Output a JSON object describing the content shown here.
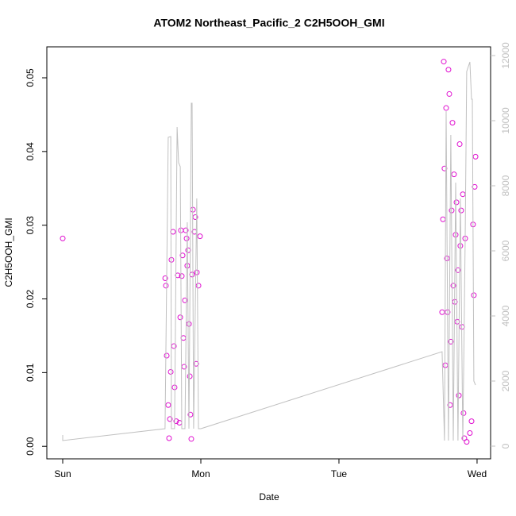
{
  "chart_data": {
    "type": "scatter",
    "title": "ATOM2 Northeast_Pacific_2 C2H5OOH_GMI",
    "x_label": "Date",
    "y_label": "C2H5OOH_GMI",
    "xlim": [
      -0.115,
      3.098
    ],
    "xticks": [
      {
        "value": 0,
        "label": "Sun"
      },
      {
        "value": 1,
        "label": "Mon"
      },
      {
        "value": 2,
        "label": "Tue"
      },
      {
        "value": 3,
        "label": "Wed"
      }
    ],
    "ylim": [
      -0.0017,
      0.0542
    ],
    "yticks": [
      {
        "value": 0,
        "label": "0.00"
      },
      0.01,
      0.02,
      0.03,
      0.04,
      0.05
    ],
    "y2lim": [
      -390,
      12268
    ],
    "y2ticks": [
      0,
      2000,
      4000,
      6000,
      8000,
      10000,
      12000
    ],
    "y2_color": "#c0c0c0",
    "series": [
      {
        "color": "#e010d0",
        "x": [
          0,
          0.742,
          0.747,
          0.753,
          0.764,
          0.77,
          0.776,
          0.782,
          0.787,
          0.799,
          0.805,
          0.81,
          0.822,
          0.833,
          0.845,
          0.851,
          0.856,
          0.862,
          0.868,
          0.874,
          0.879,
          0.885,
          0.891,
          0.897,
          0.902,
          0.908,
          0.914,
          0.92,
          0.925,
          0.931,
          0.937,
          0.943,
          0.954,
          0.96,
          0.966,
          0.971,
          0.983,
          0.994,
          2.747,
          2.753,
          2.759,
          2.764,
          2.77,
          2.776,
          2.782,
          2.787,
          2.793,
          2.799,
          2.805,
          2.81,
          2.816,
          2.822,
          2.828,
          2.833,
          2.839,
          2.845,
          2.851,
          2.856,
          2.862,
          2.868,
          2.874,
          2.879,
          2.885,
          2.891,
          2.897,
          2.902,
          2.908,
          2.914,
          2.925,
          2.948,
          2.96,
          2.971,
          2.977,
          2.983,
          2.989
        ],
        "values": [
          0.0282,
          0.0228,
          0.0218,
          0.0123,
          0.0056,
          0.0011,
          0.0037,
          0.0101,
          0.0253,
          0.0291,
          0.0136,
          0.008,
          0.0034,
          0.0232,
          0.0032,
          0.0175,
          0.0293,
          0.0231,
          0.0259,
          0.0147,
          0.0108,
          0.0198,
          0.0293,
          0.0282,
          0.0245,
          0.0266,
          0.0166,
          0.0095,
          0.0043,
          0.001,
          0.0233,
          0.0321,
          0.0291,
          0.0311,
          0.0112,
          0.0236,
          0.0218,
          0.0285,
          0.0182,
          0.0308,
          0.0522,
          0.0377,
          0.011,
          0.0459,
          0.0255,
          0.0182,
          0.0511,
          0.0478,
          0.0056,
          0.0142,
          0.032,
          0.0439,
          0.0218,
          0.0369,
          0.0196,
          0.0287,
          0.0331,
          0.0169,
          0.0239,
          0.0069,
          0.041,
          0.0272,
          0.032,
          0.0162,
          0.0342,
          0.0045,
          0.0011,
          0.0282,
          0.0006,
          0.0018,
          0.0034,
          0.0301,
          0.0205,
          0.0352,
          0.0393
        ]
      },
      {
        "color": "#c0c0c0",
        "axis": "y2",
        "line": true,
        "x": [
          0,
          0,
          0.741,
          0.764,
          0.782,
          0.787,
          0.81,
          0.828,
          0.839,
          0.851,
          0.862,
          0.885,
          0.902,
          0.914,
          0.931,
          0.937,
          0.948,
          0.971,
          0.983,
          1.0,
          2.747,
          2.764,
          2.776,
          2.793,
          2.81,
          2.828,
          2.845,
          2.862,
          2.879,
          2.897,
          2.914,
          2.925,
          2.948,
          2.96,
          2.966,
          2.977,
          2.989
        ],
        "values": [
          341,
          171,
          537,
          9488,
          9512,
          537,
          537,
          9805,
          8707,
          8585,
          537,
          537,
          6878,
          537,
          10537,
          10537,
          537,
          7610,
          537,
          537,
          2902,
          171,
          10293,
          171,
          9561,
          171,
          8098,
          171,
          7610,
          171,
          6390,
          11512,
          11805,
          10659,
          10659,
          2000,
          1878
        ]
      }
    ]
  }
}
